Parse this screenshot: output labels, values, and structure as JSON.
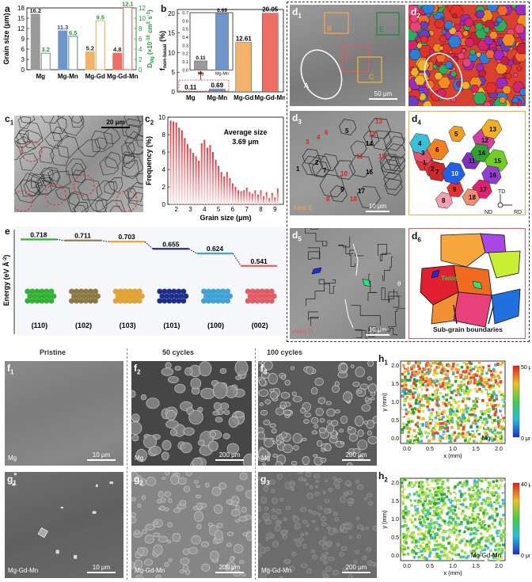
{
  "panels": {
    "a": "a",
    "b": "b",
    "c1": "c",
    "c1sub": "1",
    "c2": "c",
    "c2sub": "2",
    "d1": "d",
    "d1sub": "1",
    "d2": "d",
    "d2sub": "2",
    "d3": "d",
    "d3sub": "3",
    "d4": "d",
    "d4sub": "4",
    "d5": "d",
    "d5sub": "5",
    "d6": "d",
    "d6sub": "6",
    "e": "e",
    "f1": "f",
    "f1sub": "1",
    "f2": "f",
    "f2sub": "2",
    "f3": "f",
    "f3sub": "3",
    "g1": "g",
    "g1sub": "1",
    "g2": "g",
    "g2sub": "2",
    "g3": "g",
    "g3sub": "3",
    "h1": "h",
    "h1sub": "1",
    "h2": "h",
    "h2sub": "2"
  },
  "colors": {
    "gray": "#9a9a9a",
    "blue": "#6f96c8",
    "orange": "#f3b26a",
    "red": "#ee6e63",
    "green": "#1c9c3a"
  },
  "chart_a": {
    "type": "bar",
    "categories": [
      "Mg",
      "Mg-Mn",
      "Mg-Gd",
      "Mg-Gd-Mn"
    ],
    "series": [
      {
        "name": "Grain size",
        "values": [
          16.2,
          11.3,
          5.2,
          4.8
        ]
      },
      {
        "name": "D_Mg",
        "values": [
          3.2,
          6.5,
          9.5,
          12.1
        ]
      }
    ],
    "ylabel": "Grain size (μm)",
    "y2label": "D",
    "y2sub": "Mg",
    "y2unit": " (×10",
    "y2exp": "-16",
    "y2unit2": " cm",
    "y2exp2": "2",
    "y2unit3": " s",
    "y2exp3": "-1",
    "y2unit4": ")",
    "ylim": [
      0,
      18
    ],
    "y2lim": [
      0,
      12
    ],
    "yticks": [
      "0",
      "3",
      "6",
      "9",
      "12",
      "15",
      "18"
    ],
    "y2ticks": [
      "0",
      "2",
      "4",
      "6",
      "8",
      "10",
      "12"
    ]
  },
  "chart_b": {
    "type": "bar",
    "categories": [
      "Mg",
      "Mg-Mn",
      "Mg-Gd",
      "Mg-Gd-Mn"
    ],
    "values": [
      0.11,
      0.69,
      12.61,
      20.05
    ],
    "labels": [
      "0.11",
      "0.69",
      "12.61",
      "20.05"
    ],
    "ylabel": "f",
    "ysub": "non-basal",
    "yunit": " (%)",
    "ylim": [
      0,
      21
    ],
    "yticks": [
      "0",
      "5",
      "10",
      "15",
      "20"
    ],
    "inset": {
      "categories": [
        "Mg",
        "Mg-Mn"
      ],
      "values": [
        0.11,
        0.69
      ],
      "labels": [
        "0.11",
        "0.69"
      ],
      "yticks": [
        "0.0",
        "0.1",
        "0.2",
        "0.3",
        "0.4",
        "0.5",
        "0.6",
        "0.7"
      ]
    }
  },
  "c1": {
    "scale": "20 μm"
  },
  "chart_c2": {
    "type": "bar",
    "xlabel": "Grain size (μm)",
    "ylabel": "Frequency (%)",
    "annotation": "Average size",
    "annotation_value": "3.69 μm",
    "xticks": [
      "2",
      "3",
      "4",
      "5",
      "6",
      "7",
      "8",
      "9"
    ],
    "yticks": [
      "0",
      "2",
      "4",
      "6",
      "8",
      "10"
    ],
    "xlim": [
      1.4,
      9.6
    ],
    "ylim": [
      0,
      10
    ],
    "bins": [
      1.6,
      1.8,
      2.0,
      2.2,
      2.4,
      2.6,
      2.8,
      3.0,
      3.2,
      3.4,
      3.6,
      3.8,
      4.0,
      4.2,
      4.4,
      4.6,
      4.8,
      5.0,
      5.2,
      5.4,
      5.6,
      5.8,
      6.0,
      6.2,
      6.4,
      6.6,
      6.8,
      7.0,
      7.2,
      7.4,
      7.6,
      7.8,
      8.0,
      8.2,
      8.4,
      8.6,
      8.8,
      9.0,
      9.2
    ],
    "values": [
      9.6,
      9.5,
      9.4,
      8.8,
      8.5,
      7.6,
      6.9,
      6.4,
      5.9,
      5.5,
      5.0,
      7.0,
      7.4,
      6.5,
      6.8,
      6.0,
      5.1,
      4.4,
      3.7,
      3.2,
      3.7,
      3.0,
      2.4,
      2.0,
      1.6,
      1.5,
      1.6,
      1.9,
      1.4,
      1.2,
      1.6,
      1.1,
      1.6,
      0.9,
      1.4,
      0.7,
      1.3,
      0.8,
      1.8
    ]
  },
  "chart_e": {
    "type": "line",
    "ylabel": "Energy (eV Å",
    "yexp": "-2",
    "ylabel_end": ")",
    "facets": [
      "(110)",
      "(102)",
      "(103)",
      "(101)",
      "(100)",
      "(002)"
    ],
    "values": [
      0.718,
      0.711,
      0.703,
      0.655,
      0.624,
      0.541
    ],
    "labels": [
      "0.718",
      "0.711",
      "0.703",
      "0.655",
      "0.624",
      "0.541"
    ],
    "colors": [
      "#2fb52f",
      "#8d7a3e",
      "#e7a62b",
      "#1c2f8f",
      "#3aa6dc",
      "#e95a62"
    ]
  },
  "d1": {
    "A": "A",
    "B": "B",
    "C": "C",
    "D": "D",
    "E": "E",
    "scale": "50 μm"
  },
  "d3": {
    "area": "Area B",
    "scale": "10 μm",
    "nums": [
      "1",
      "2",
      "3",
      "4",
      "5",
      "6",
      "7",
      "8",
      "9",
      "10",
      "11",
      "12",
      "13",
      "14",
      "15",
      "16",
      "17",
      "18"
    ]
  },
  "d4": {
    "TD": "TD",
    "ND": "ND",
    "RD": "RD",
    "nums": [
      "1",
      "2",
      "3",
      "4",
      "5",
      "6",
      "7",
      "8",
      "9",
      "10",
      "11",
      "12",
      "13",
      "14",
      "15",
      "16",
      "17",
      "18"
    ]
  },
  "d5": {
    "area": "Area D",
    "scale": "10 μm",
    "theta": "θ"
  },
  "d6": {
    "twins": "Twins",
    "sub_grain": "Sub-grain boundaries"
  },
  "row_f": {
    "headers": [
      "Pristine",
      "50 cycles",
      "100 cycles"
    ],
    "f1": {
      "label": "Mg",
      "scale": "10 μm"
    },
    "f2": {
      "label": "Mg",
      "scale": "200 μm"
    },
    "f3": {
      "label": "Mg",
      "scale": "200 μm"
    },
    "g1": {
      "label": "Mg-Gd-Mn",
      "scale": "10 μm"
    },
    "g2": {
      "label": "Mg-Gd-Mn",
      "scale": "200 μm"
    },
    "g3": {
      "label": "Mg-Gd-Mn",
      "scale": "200 μm"
    }
  },
  "h1": {
    "xlabel": "x (mm)",
    "ylabel": "y (mm)",
    "xticks": [
      "0.0",
      "0.5",
      "1.0",
      "1.5",
      "2.0"
    ],
    "yticks": [
      "0.0",
      "0.5",
      "1.0",
      "1.5",
      "2.0"
    ],
    "cmax": "50 μm",
    "cmin": "0 μm",
    "sample": "Mg"
  },
  "h2": {
    "xlabel": "x (mm)",
    "ylabel": "y (mm)",
    "xticks": [
      "0.0",
      "0.5",
      "1.0",
      "1.5",
      "2.0"
    ],
    "yticks": [
      "0.0",
      "0.5",
      "1.0",
      "1.5",
      "2.0"
    ],
    "cmax": "40 μm",
    "cmin": "0 μm",
    "sample": "Mg-Gd-Mn"
  }
}
